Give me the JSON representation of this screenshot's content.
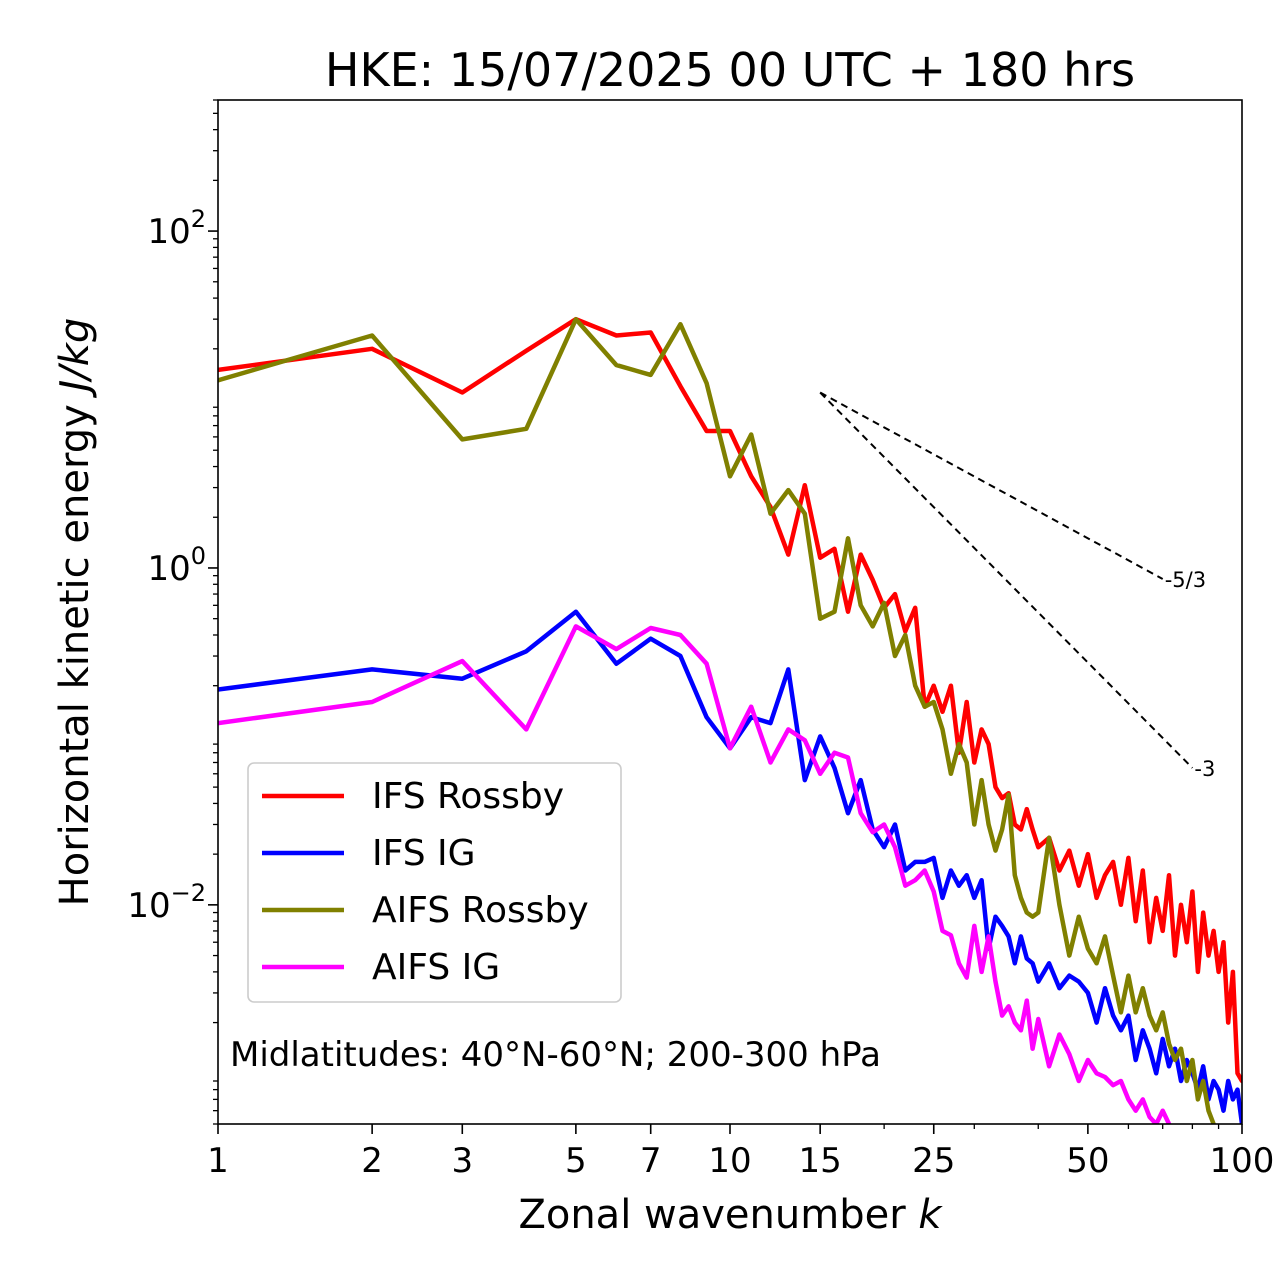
{
  "chart_data": {
    "type": "line",
    "title": "HKE: 15/07/2025 00 UTC + 180 hrs",
    "xlabel": "Zonal wavenumber",
    "xlabel_var": "k",
    "ylabel": "Horizontal kinetic energy",
    "ylabel_unit": "J/kg",
    "xscale": "log",
    "yscale": "log",
    "xlim": [
      1,
      100
    ],
    "ylim": [
      0.0005,
      600
    ],
    "xticks": [
      1,
      2,
      3,
      5,
      7,
      10,
      15,
      25,
      50,
      100
    ],
    "xtick_labels": [
      "1",
      "2",
      "3",
      "5",
      "7",
      "10",
      "15",
      "25",
      "50",
      "100"
    ],
    "yticks": [
      0.01,
      1,
      100
    ],
    "ytick_base": "10",
    "ytick_exponents": [
      "−2",
      "0",
      "2"
    ],
    "grid": false,
    "legend_position": "lower-left",
    "annotation": "Midlatitudes: 40°N-60°N; 200-300 hPa",
    "reference_lines": [
      {
        "label": "-5/3",
        "x": [
          15,
          70
        ],
        "y": [
          11,
          0.86
        ],
        "color": "#000000",
        "style": "dashed"
      },
      {
        "label": "-3",
        "x": [
          15,
          80
        ],
        "y": [
          11,
          0.065
        ],
        "color": "#000000",
        "style": "dashed"
      }
    ],
    "series": [
      {
        "name": "IFS Rossby",
        "color": "#ff0000",
        "x": [
          1,
          2,
          3,
          4,
          5,
          6,
          7,
          8,
          9,
          10,
          11,
          12,
          13,
          14,
          15,
          16,
          17,
          18,
          19,
          20,
          21,
          22,
          23,
          24,
          25,
          26,
          27,
          28,
          29,
          30,
          31,
          32,
          33,
          34,
          35,
          36,
          37,
          38,
          39,
          40,
          42,
          44,
          46,
          48,
          50,
          52,
          54,
          56,
          58,
          60,
          62,
          64,
          66,
          68,
          70,
          72,
          74,
          76,
          78,
          80,
          82,
          84,
          86,
          88,
          90,
          92,
          94,
          96,
          98,
          100
        ],
        "y": [
          15,
          20,
          11,
          19.5,
          30,
          24,
          25,
          12,
          6.5,
          6.5,
          3.5,
          2.3,
          1.2,
          3.1,
          1.15,
          1.3,
          0.55,
          1.2,
          0.85,
          0.58,
          0.7,
          0.42,
          0.58,
          0.15,
          0.2,
          0.14,
          0.2,
          0.08,
          0.16,
          0.07,
          0.11,
          0.09,
          0.05,
          0.043,
          0.046,
          0.03,
          0.028,
          0.037,
          0.028,
          0.022,
          0.025,
          0.016,
          0.021,
          0.013,
          0.02,
          0.011,
          0.015,
          0.018,
          0.01,
          0.019,
          0.008,
          0.016,
          0.006,
          0.011,
          0.007,
          0.015,
          0.005,
          0.01,
          0.006,
          0.012,
          0.004,
          0.009,
          0.005,
          0.007,
          0.004,
          0.006,
          0.002,
          0.004,
          0.001,
          0.0009
        ]
      },
      {
        "name": "IFS IG",
        "color": "#0000ff",
        "x": [
          1,
          2,
          3,
          4,
          5,
          6,
          7,
          8,
          9,
          10,
          11,
          12,
          13,
          14,
          15,
          16,
          17,
          18,
          19,
          20,
          21,
          22,
          23,
          24,
          25,
          26,
          27,
          28,
          29,
          30,
          31,
          32,
          33,
          34,
          35,
          36,
          37,
          38,
          39,
          40,
          42,
          44,
          46,
          48,
          50,
          52,
          54,
          56,
          58,
          60,
          62,
          64,
          66,
          68,
          70,
          72,
          74,
          76,
          78,
          80,
          82,
          84,
          86,
          88,
          90,
          92,
          94,
          96,
          98,
          100
        ],
        "y": [
          0.19,
          0.25,
          0.22,
          0.32,
          0.55,
          0.27,
          0.38,
          0.3,
          0.13,
          0.085,
          0.13,
          0.12,
          0.25,
          0.055,
          0.1,
          0.065,
          0.035,
          0.055,
          0.028,
          0.022,
          0.03,
          0.016,
          0.018,
          0.018,
          0.019,
          0.011,
          0.016,
          0.013,
          0.015,
          0.011,
          0.014,
          0.0055,
          0.0085,
          0.0075,
          0.0065,
          0.0045,
          0.0065,
          0.0048,
          0.0045,
          0.0035,
          0.0045,
          0.0032,
          0.0038,
          0.0035,
          0.003,
          0.002,
          0.0032,
          0.0022,
          0.0018,
          0.0022,
          0.0012,
          0.0018,
          0.0014,
          0.001,
          0.0016,
          0.0011,
          0.0014,
          0.0009,
          0.0012,
          0.001,
          0.0008,
          0.0011,
          0.0007,
          0.0009,
          0.0008,
          0.0006,
          0.0009,
          0.0007,
          0.0008,
          0.0005
        ]
      },
      {
        "name": "AIFS Rossby",
        "color": "#808000",
        "x": [
          1,
          2,
          3,
          4,
          5,
          6,
          7,
          8,
          9,
          10,
          11,
          12,
          13,
          14,
          15,
          16,
          17,
          18,
          19,
          20,
          21,
          22,
          23,
          24,
          25,
          26,
          27,
          28,
          29,
          30,
          31,
          32,
          33,
          34,
          35,
          36,
          37,
          38,
          39,
          40,
          42,
          44,
          46,
          48,
          50,
          52,
          54,
          56,
          58,
          60,
          62,
          64,
          66,
          68,
          70,
          72,
          74,
          76,
          78,
          80,
          82,
          84,
          86,
          88
        ],
        "y": [
          13,
          24,
          5.8,
          6.7,
          30,
          16,
          14,
          28,
          12.5,
          3.5,
          6.2,
          2.1,
          2.9,
          2.1,
          0.5,
          0.55,
          1.5,
          0.6,
          0.45,
          0.62,
          0.3,
          0.4,
          0.2,
          0.15,
          0.16,
          0.11,
          0.06,
          0.09,
          0.07,
          0.03,
          0.055,
          0.03,
          0.021,
          0.028,
          0.045,
          0.015,
          0.011,
          0.009,
          0.0085,
          0.009,
          0.025,
          0.01,
          0.005,
          0.0085,
          0.0055,
          0.0045,
          0.0065,
          0.0038,
          0.0023,
          0.0038,
          0.0023,
          0.0032,
          0.0022,
          0.0018,
          0.0023,
          0.0015,
          0.0012,
          0.0014,
          0.0009,
          0.0012,
          0.0007,
          0.0009,
          0.0006,
          0.0005
        ]
      },
      {
        "name": "AIFS IG",
        "color": "#ff00ff",
        "x": [
          1,
          2,
          3,
          4,
          5,
          6,
          7,
          8,
          9,
          10,
          11,
          12,
          13,
          14,
          15,
          16,
          17,
          18,
          19,
          20,
          21,
          22,
          23,
          24,
          25,
          26,
          27,
          28,
          29,
          30,
          31,
          32,
          33,
          34,
          35,
          36,
          37,
          38,
          39,
          40,
          42,
          44,
          46,
          48,
          50,
          52,
          54,
          56,
          58,
          60,
          62,
          64,
          66,
          68,
          70,
          72
        ],
        "y": [
          0.12,
          0.16,
          0.28,
          0.11,
          0.45,
          0.33,
          0.44,
          0.4,
          0.27,
          0.085,
          0.15,
          0.07,
          0.11,
          0.095,
          0.06,
          0.08,
          0.075,
          0.035,
          0.027,
          0.03,
          0.022,
          0.013,
          0.014,
          0.016,
          0.012,
          0.007,
          0.0066,
          0.0045,
          0.0037,
          0.0075,
          0.004,
          0.0065,
          0.0035,
          0.0022,
          0.0025,
          0.002,
          0.0018,
          0.0027,
          0.0014,
          0.0021,
          0.0011,
          0.0017,
          0.0013,
          0.0009,
          0.0012,
          0.001,
          0.00095,
          0.00085,
          0.0009,
          0.0007,
          0.0006,
          0.0007,
          0.00055,
          0.0005,
          0.0006,
          0.0005
        ]
      }
    ]
  }
}
